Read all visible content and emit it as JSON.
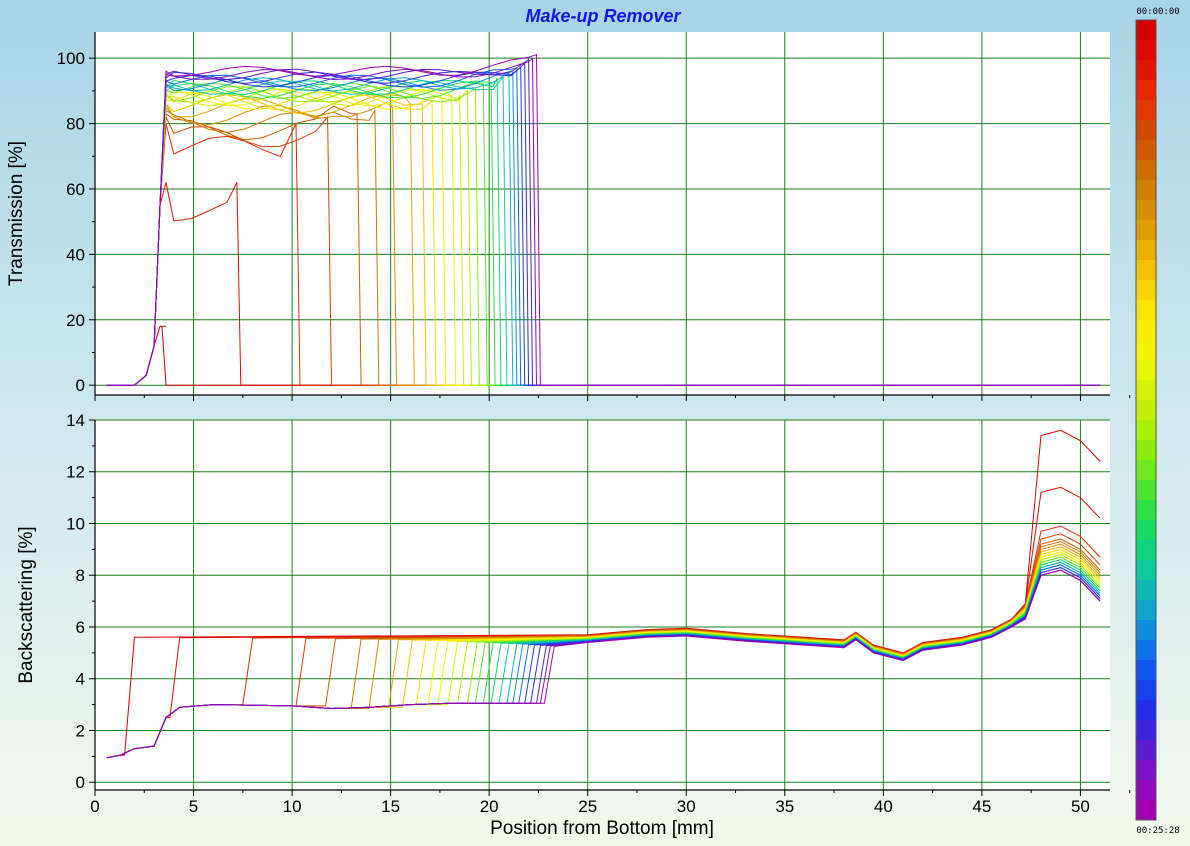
{
  "chart_data": {
    "type": "line",
    "title": "Make-up Remover",
    "xlabel": "Position from Bottom [mm]",
    "xlim": [
      0,
      51.5
    ],
    "xticks": [
      0,
      5,
      10,
      15,
      20,
      25,
      30,
      35,
      40,
      45,
      50
    ],
    "panels": [
      {
        "ylabel": "Transmission [%]",
        "ylim": [
          -3,
          108
        ],
        "yticks": [
          0,
          20,
          40,
          60,
          80,
          100
        ],
        "grid": true
      },
      {
        "ylabel": "Backscattering [%]",
        "ylim": [
          -0.3,
          14
        ],
        "yticks": [
          0,
          2,
          4,
          6,
          8,
          10,
          12,
          14
        ],
        "grid": true
      }
    ],
    "colorbar": {
      "top_label": "00:00:00",
      "bottom_label": "00:25:28",
      "colors": [
        "#d40000",
        "#e01000",
        "#e83000",
        "#d04a00",
        "#cc6a00",
        "#d08800",
        "#e0a000",
        "#f0c000",
        "#fae000",
        "#f8f000",
        "#e8f800",
        "#c8f000",
        "#a0f000",
        "#70e820",
        "#30e040",
        "#10d870",
        "#10c8a0",
        "#10a8c8",
        "#1080e8",
        "#1050f0",
        "#2030e8",
        "#5020d8",
        "#8010c0",
        "#a000b0"
      ]
    },
    "series_note": "Each curve is one scan; colour runs from red (00:00:00) to violet (00:25:28).",
    "transmission_fronts_mm": [
      3.6,
      7.4,
      10.4,
      12.0,
      13.5,
      14.4,
      15.3,
      16.2,
      16.8,
      17.3,
      17.8,
      18.3,
      18.7,
      19.1,
      19.5,
      19.9,
      20.3,
      20.6,
      20.9,
      21.2,
      21.4,
      21.6,
      21.8,
      22.0,
      22.2,
      22.4,
      22.6
    ],
    "transmission_plateaus": [
      18,
      62,
      80,
      82,
      83,
      84,
      85,
      86,
      86,
      87,
      87,
      88,
      88,
      89,
      89,
      90,
      90,
      91,
      91,
      92,
      92,
      93,
      93,
      94,
      95,
      95,
      96
    ],
    "backscattering_fronts_mm": [
      1.5,
      3.8,
      7.5,
      10.2,
      11.7,
      13.0,
      13.9,
      14.9,
      15.6,
      16.3,
      16.9,
      17.4,
      17.9,
      18.4,
      18.9,
      19.3,
      19.7,
      20.1,
      20.5,
      20.9,
      21.2,
      21.5,
      21.8,
      22.1,
      22.4,
      22.6,
      22.8
    ],
    "backscattering_top_peak": [
      13.6,
      11.4,
      9.9,
      9.6,
      9.4,
      9.3,
      9.2,
      9.1,
      9.0,
      9.0,
      8.9,
      8.9,
      8.8,
      8.8,
      8.7,
      8.7,
      8.6,
      8.6,
      8.5,
      8.5,
      8.4,
      8.4,
      8.3,
      8.3,
      8.2,
      8.2,
      8.2
    ]
  }
}
